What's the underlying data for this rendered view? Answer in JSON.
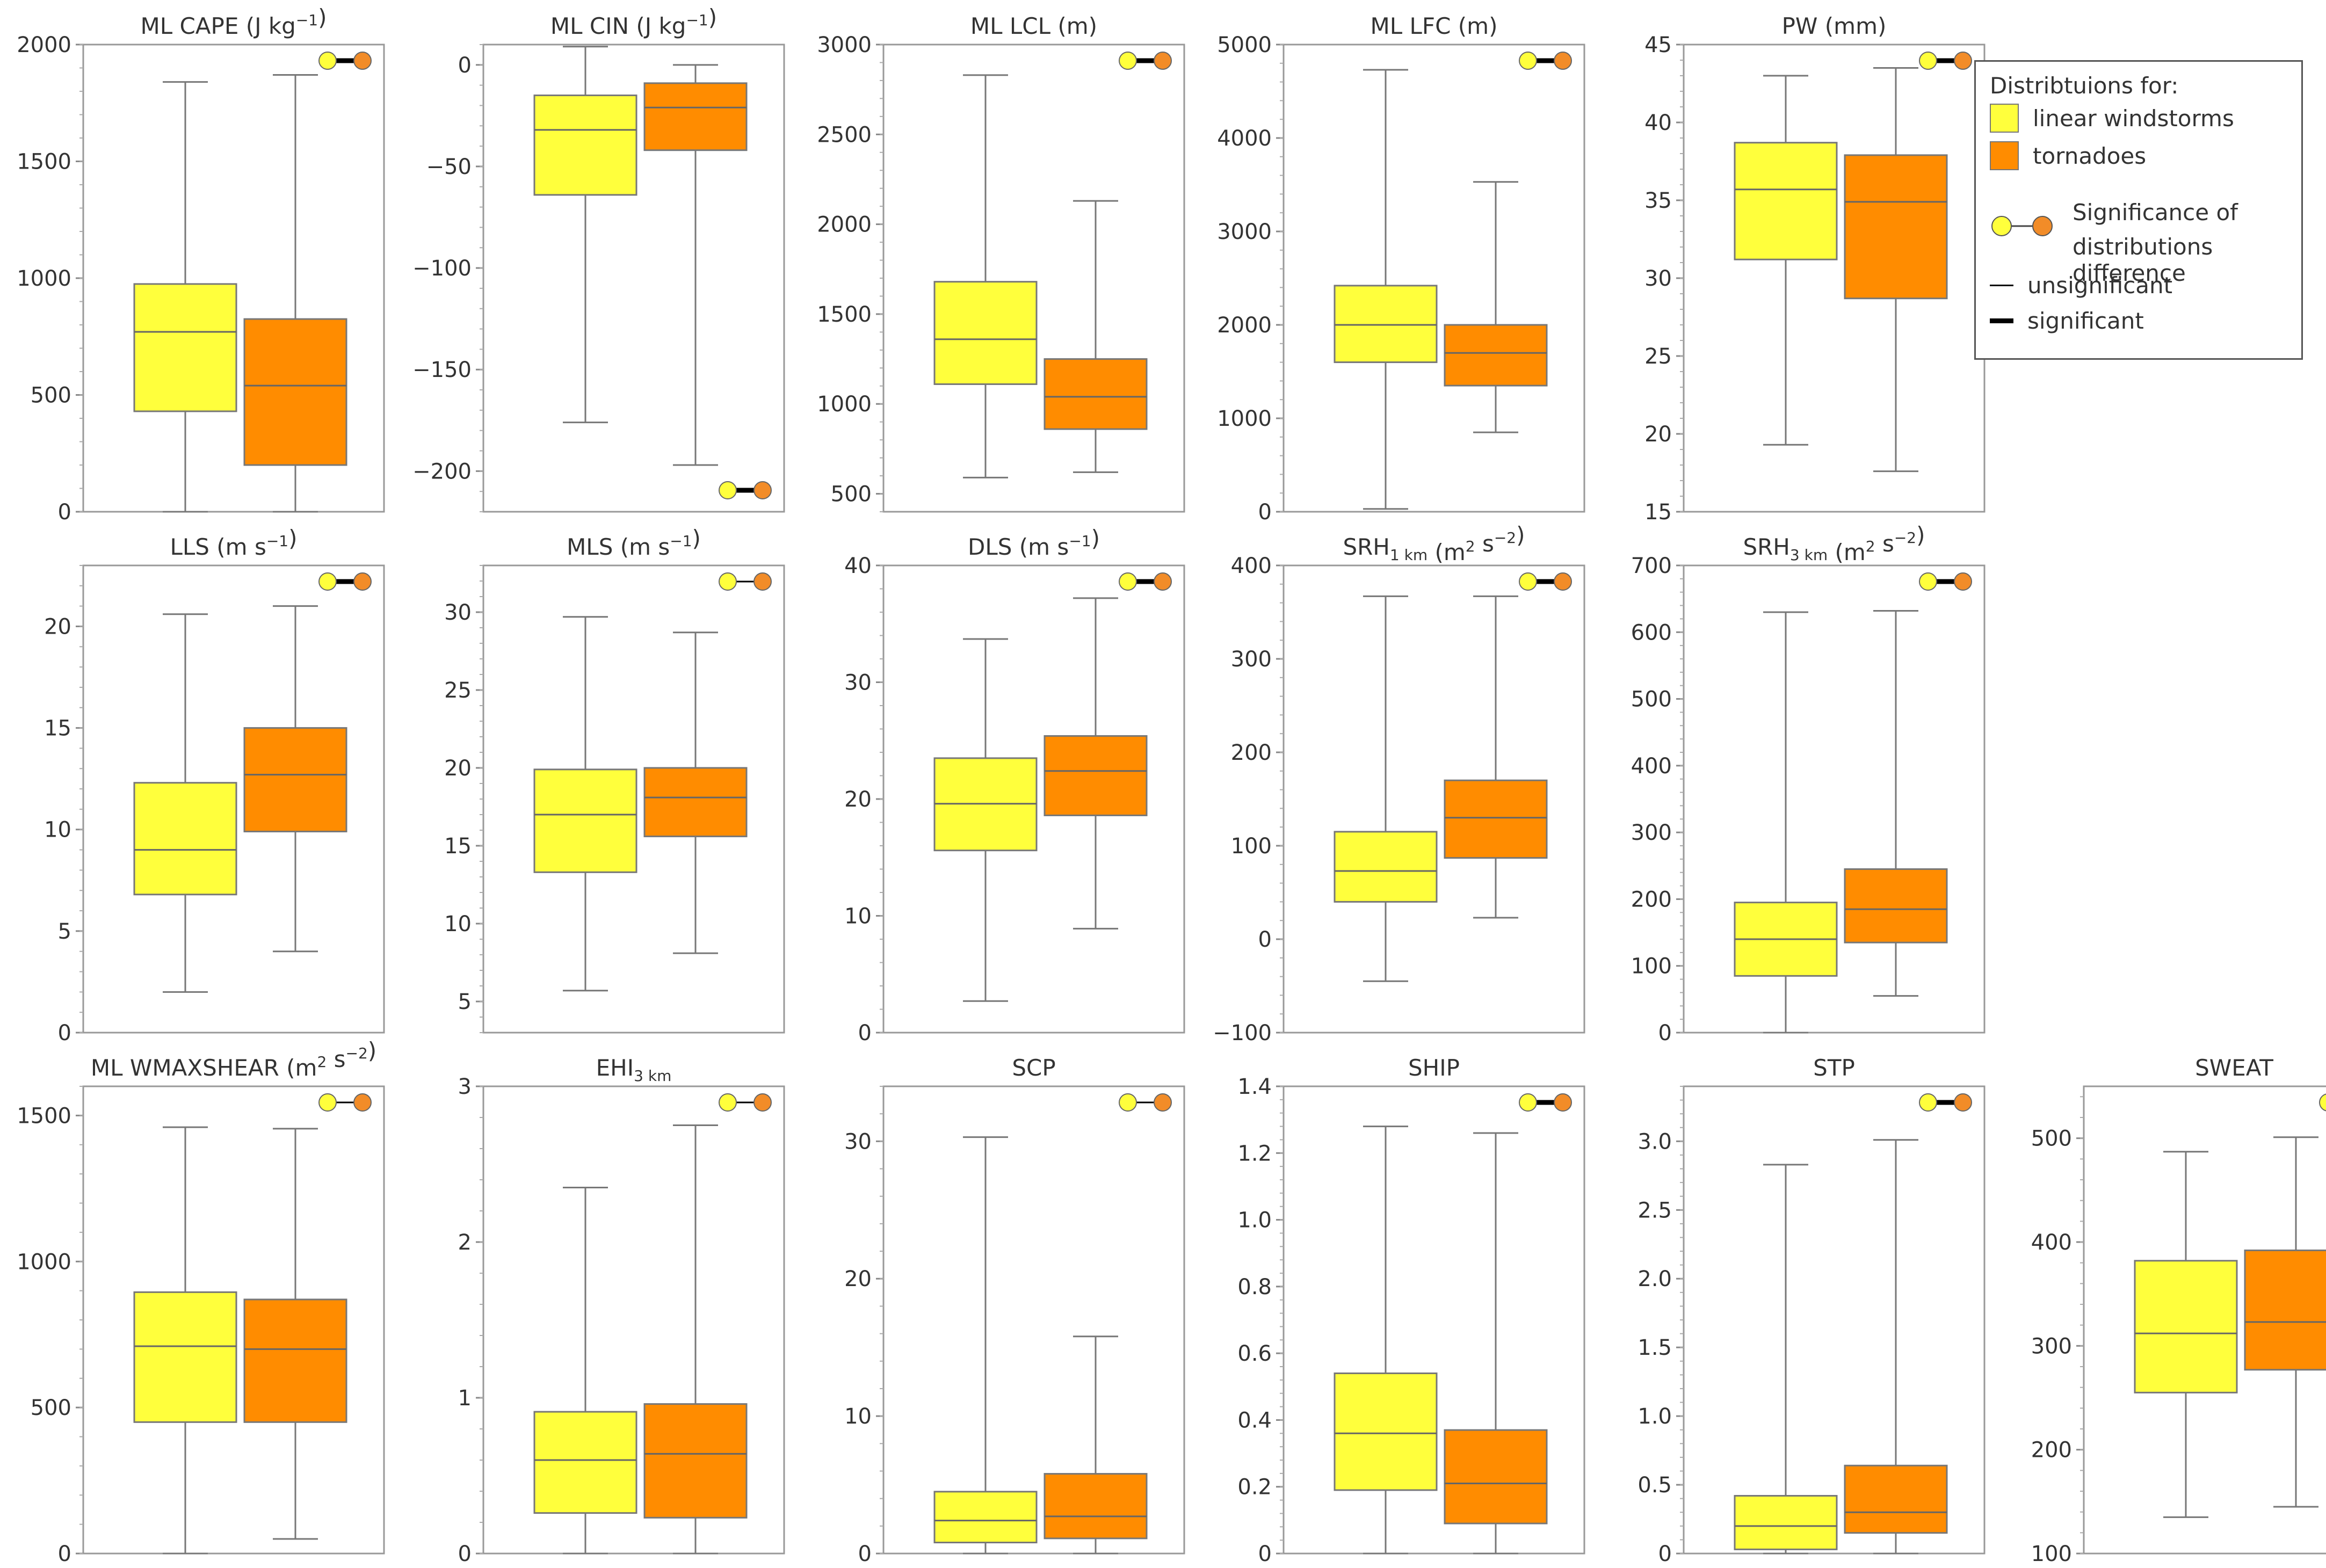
{
  "colors": {
    "linear_windstorms": "#FFFF3C",
    "tornadoes": "#FF8C00",
    "sig_left_dot": "#FFFF3C",
    "sig_right_dot": "#F28C28",
    "whisker": "#777777",
    "axis": "#999999"
  },
  "legend": {
    "title": "Distribtuions for:",
    "linear_label": "linear windstorms",
    "tornado_label": "tornadoes",
    "significance_line1": "Significance of",
    "significance_line2": "distributions difference",
    "unsignificant_label": "unsignificant",
    "significant_label": "significant"
  },
  "chart_data": [
    {
      "type": "box",
      "title": "ML CAPE (J kg",
      "title_sup": "−1",
      "title_end": ")",
      "ylim": [
        0,
        2000
      ],
      "yticks": [
        0,
        500,
        1000,
        1500,
        2000
      ],
      "significant": true,
      "series": [
        {
          "name": "linear windstorms",
          "whislo": 0,
          "q1": 430,
          "med": 770,
          "q3": 975,
          "whishi": 1840
        },
        {
          "name": "tornadoes",
          "whislo": 0,
          "q1": 200,
          "med": 540,
          "q3": 825,
          "whishi": 1870
        }
      ]
    },
    {
      "type": "box",
      "title": "ML CIN (J kg",
      "title_sup": "−1",
      "title_end": ")",
      "ylim": [
        -220,
        10
      ],
      "yticks": [
        -200,
        -150,
        -100,
        -50,
        0
      ],
      "significant": true,
      "sig_position": "bottom-right",
      "series": [
        {
          "name": "linear windstorms",
          "whislo": -176,
          "q1": -64,
          "med": -32,
          "q3": -15,
          "whishi": 9
        },
        {
          "name": "tornadoes",
          "whislo": -197,
          "q1": -42,
          "med": -21,
          "q3": -9,
          "whishi": 0
        }
      ]
    },
    {
      "type": "box",
      "title": "ML LCL (m)",
      "ylim": [
        400,
        3000
      ],
      "yticks": [
        500,
        1000,
        1500,
        2000,
        2500,
        3000
      ],
      "significant": true,
      "series": [
        {
          "name": "linear windstorms",
          "whislo": 590,
          "q1": 1110,
          "med": 1360,
          "q3": 1680,
          "whishi": 2830
        },
        {
          "name": "tornadoes",
          "whislo": 620,
          "q1": 860,
          "med": 1040,
          "q3": 1250,
          "whishi": 2130
        }
      ]
    },
    {
      "type": "box",
      "title": "ML LFC (m)",
      "ylim": [
        0,
        5000
      ],
      "yticks": [
        0,
        1000,
        2000,
        3000,
        4000,
        5000
      ],
      "significant": true,
      "series": [
        {
          "name": "linear windstorms",
          "whislo": 30,
          "q1": 1600,
          "med": 2000,
          "q3": 2420,
          "whishi": 4730
        },
        {
          "name": "tornadoes",
          "whislo": 850,
          "q1": 1350,
          "med": 1700,
          "q3": 2000,
          "whishi": 3530
        }
      ]
    },
    {
      "type": "box",
      "title": "PW (mm)",
      "ylim": [
        15,
        45
      ],
      "yticks": [
        15,
        20,
        25,
        30,
        35,
        40,
        45
      ],
      "significant": true,
      "series": [
        {
          "name": "linear windstorms",
          "whislo": 19.3,
          "q1": 31.2,
          "med": 35.7,
          "q3": 38.7,
          "whishi": 43
        },
        {
          "name": "tornadoes",
          "whislo": 17.6,
          "q1": 28.7,
          "med": 34.9,
          "q3": 37.9,
          "whishi": 43.5
        }
      ]
    },
    {
      "type": "box",
      "title": "LLS (m s",
      "title_sup": "−1",
      "title_end": ")",
      "ylim": [
        0,
        23
      ],
      "yticks": [
        0,
        5,
        10,
        15,
        20
      ],
      "significant": true,
      "series": [
        {
          "name": "linear windstorms",
          "whislo": 2,
          "q1": 6.8,
          "med": 9,
          "q3": 12.3,
          "whishi": 20.6
        },
        {
          "name": "tornadoes",
          "whislo": 4,
          "q1": 9.9,
          "med": 12.7,
          "q3": 15,
          "whishi": 21
        }
      ]
    },
    {
      "type": "box",
      "title": "MLS (m s",
      "title_sup": "−1",
      "title_end": ")",
      "ylim": [
        3,
        33
      ],
      "yticks": [
        5,
        10,
        15,
        20,
        25,
        30
      ],
      "significant": false,
      "series": [
        {
          "name": "linear windstorms",
          "whislo": 5.7,
          "q1": 13.3,
          "med": 17,
          "q3": 19.9,
          "whishi": 29.7
        },
        {
          "name": "tornadoes",
          "whislo": 8.1,
          "q1": 15.6,
          "med": 18.1,
          "q3": 20,
          "whishi": 28.7
        }
      ]
    },
    {
      "type": "box",
      "title": "DLS (m s",
      "title_sup": "−1",
      "title_end": ")",
      "ylim": [
        0,
        40
      ],
      "yticks": [
        0,
        10,
        20,
        30,
        40
      ],
      "significant": true,
      "series": [
        {
          "name": "linear windstorms",
          "whislo": 2.7,
          "q1": 15.6,
          "med": 19.6,
          "q3": 23.5,
          "whishi": 33.7
        },
        {
          "name": "tornadoes",
          "whislo": 8.9,
          "q1": 18.6,
          "med": 22.4,
          "q3": 25.4,
          "whishi": 37.2
        }
      ]
    },
    {
      "type": "box",
      "title": "SRH",
      "title_sub": "1 km",
      "title_end": " (m",
      "title_sup2": "2",
      "title_end2": " s",
      "title_sup3": "−2",
      "title_end3": ")",
      "ylim": [
        -100,
        400
      ],
      "yticks": [
        -100,
        0,
        100,
        200,
        300,
        400
      ],
      "significant": true,
      "series": [
        {
          "name": "linear windstorms",
          "whislo": -45,
          "q1": 40,
          "med": 73,
          "q3": 115,
          "whishi": 367
        },
        {
          "name": "tornadoes",
          "whislo": 23,
          "q1": 87,
          "med": 130,
          "q3": 170,
          "whishi": 367
        }
      ]
    },
    {
      "type": "box",
      "title": "SRH",
      "title_sub": "3 km",
      "title_end": " (m",
      "title_sup2": "2",
      "title_end2": " s",
      "title_sup3": "−2",
      "title_end3": ")",
      "ylim": [
        0,
        700
      ],
      "yticks": [
        0,
        100,
        200,
        300,
        400,
        500,
        600,
        700
      ],
      "significant": true,
      "series": [
        {
          "name": "linear windstorms",
          "whislo": 0,
          "q1": 85,
          "med": 140,
          "q3": 195,
          "whishi": 630
        },
        {
          "name": "tornadoes",
          "whislo": 55,
          "q1": 135,
          "med": 185,
          "q3": 245,
          "whishi": 632
        }
      ]
    },
    {
      "type": "box",
      "title": "ML WMAXSHEAR (m",
      "title_sup": "2",
      "title_end": " s",
      "title_sup2b": "−2",
      "title_end2b": ")",
      "ylim": [
        0,
        1600
      ],
      "yticks": [
        0,
        500,
        1000,
        1500
      ],
      "significant": false,
      "series": [
        {
          "name": "linear windstorms",
          "whislo": 0,
          "q1": 450,
          "med": 710,
          "q3": 895,
          "whishi": 1460
        },
        {
          "name": "tornadoes",
          "whislo": 50,
          "q1": 450,
          "med": 700,
          "q3": 870,
          "whishi": 1455
        }
      ]
    },
    {
      "type": "box",
      "title": "EHI",
      "title_sub": "3 km",
      "ylim": [
        0,
        3
      ],
      "yticks": [
        0,
        1,
        2,
        3
      ],
      "significant": false,
      "series": [
        {
          "name": "linear windstorms",
          "whislo": 0,
          "q1": 0.26,
          "med": 0.6,
          "q3": 0.91,
          "whishi": 2.35
        },
        {
          "name": "tornadoes",
          "whislo": 0,
          "q1": 0.23,
          "med": 0.64,
          "q3": 0.96,
          "whishi": 2.75
        }
      ]
    },
    {
      "type": "box",
      "title": "SCP",
      "ylim": [
        0,
        34
      ],
      "yticks": [
        0,
        10,
        20,
        30
      ],
      "significant": false,
      "series": [
        {
          "name": "linear windstorms",
          "whislo": 0,
          "q1": 0.8,
          "med": 2.4,
          "q3": 4.5,
          "whishi": 30.3
        },
        {
          "name": "tornadoes",
          "whislo": 0,
          "q1": 1.1,
          "med": 2.7,
          "q3": 5.8,
          "whishi": 15.8
        }
      ]
    },
    {
      "type": "box",
      "title": "SHIP",
      "ylim": [
        0,
        1.4
      ],
      "yticks": [
        0,
        0.2,
        0.4,
        0.6,
        0.8,
        1.0,
        1.2,
        1.4
      ],
      "ytick_labels": [
        "0",
        "0.2",
        "0.4",
        "0.6",
        "0.8",
        "1.0",
        "1.2",
        "1.4"
      ],
      "significant": true,
      "series": [
        {
          "name": "linear windstorms",
          "whislo": 0,
          "q1": 0.19,
          "med": 0.36,
          "q3": 0.54,
          "whishi": 1.28
        },
        {
          "name": "tornadoes",
          "whislo": 0,
          "q1": 0.09,
          "med": 0.21,
          "q3": 0.37,
          "whishi": 1.26
        }
      ]
    },
    {
      "type": "box",
      "title": "STP",
      "ylim": [
        0,
        3.4
      ],
      "yticks": [
        0,
        0.5,
        1.0,
        1.5,
        2.0,
        2.5,
        3.0
      ],
      "ytick_labels": [
        "0",
        "0.5",
        "1.0",
        "1.5",
        "2.0",
        "2.5",
        "3.0"
      ],
      "significant": true,
      "series": [
        {
          "name": "linear windstorms",
          "whislo": 0,
          "q1": 0.03,
          "med": 0.2,
          "q3": 0.42,
          "whishi": 2.83
        },
        {
          "name": "tornadoes",
          "whislo": 0,
          "q1": 0.15,
          "med": 0.3,
          "q3": 0.64,
          "whishi": 3.01
        }
      ]
    },
    {
      "type": "box",
      "title": "SWEAT",
      "ylim": [
        100,
        550
      ],
      "yticks": [
        100,
        200,
        300,
        400,
        500
      ],
      "significant": false,
      "series": [
        {
          "name": "linear windstorms",
          "whislo": 135,
          "q1": 255,
          "med": 312,
          "q3": 382,
          "whishi": 487
        },
        {
          "name": "tornadoes",
          "whislo": 145,
          "q1": 277,
          "med": 323,
          "q3": 392,
          "whishi": 501
        }
      ]
    }
  ]
}
